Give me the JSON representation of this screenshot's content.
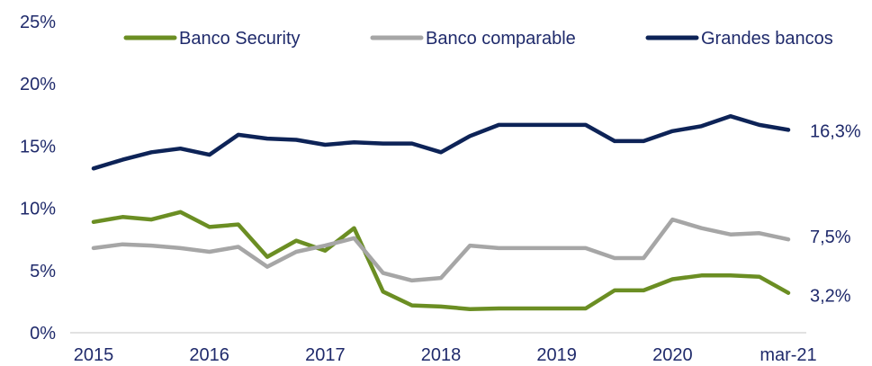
{
  "chart_data": {
    "type": "line",
    "title": "",
    "xlabel": "",
    "ylabel": "",
    "ylim": [
      0,
      25
    ],
    "grid": false,
    "legend_position": "top",
    "y_ticks": [
      "0%",
      "5%",
      "10%",
      "15%",
      "20%",
      "25%"
    ],
    "x_ticks": [
      {
        "label": "2015",
        "x": 0
      },
      {
        "label": "2016",
        "x": 4
      },
      {
        "label": "2017",
        "x": 8
      },
      {
        "label": "2018",
        "x": 12
      },
      {
        "label": "2019",
        "x": 16
      },
      {
        "label": "2020",
        "x": 20
      },
      {
        "label": "mar-21",
        "x": 24
      }
    ],
    "series": [
      {
        "name": "Banco Security",
        "color": "#6b8e23",
        "end_label": "3,2%",
        "values": [
          8.9,
          9.3,
          9.1,
          9.7,
          8.5,
          8.7,
          6.1,
          7.4,
          6.6,
          8.4,
          3.3,
          2.2,
          2.1,
          1.9,
          1.95,
          1.95,
          1.95,
          1.95,
          3.4,
          3.4,
          4.3,
          4.6,
          4.6,
          4.5,
          3.2
        ]
      },
      {
        "name": "Banco comparable",
        "color": "#a6a6a6",
        "end_label": "7,5%",
        "values": [
          6.8,
          7.1,
          7.0,
          6.8,
          6.5,
          6.9,
          5.3,
          6.5,
          7.0,
          7.6,
          4.8,
          4.2,
          4.4,
          7.0,
          6.8,
          6.8,
          6.8,
          6.8,
          6.0,
          6.0,
          9.1,
          8.4,
          7.9,
          8.0,
          7.5
        ]
      },
      {
        "name": "Grandes bancos",
        "color": "#0d2357",
        "end_label": "16,3%",
        "values": [
          13.2,
          13.9,
          14.5,
          14.8,
          14.3,
          15.9,
          15.6,
          15.5,
          15.1,
          15.3,
          15.2,
          15.2,
          14.5,
          15.8,
          16.7,
          16.7,
          16.7,
          16.7,
          15.4,
          15.4,
          16.2,
          16.6,
          17.4,
          16.7,
          16.3
        ]
      }
    ]
  }
}
